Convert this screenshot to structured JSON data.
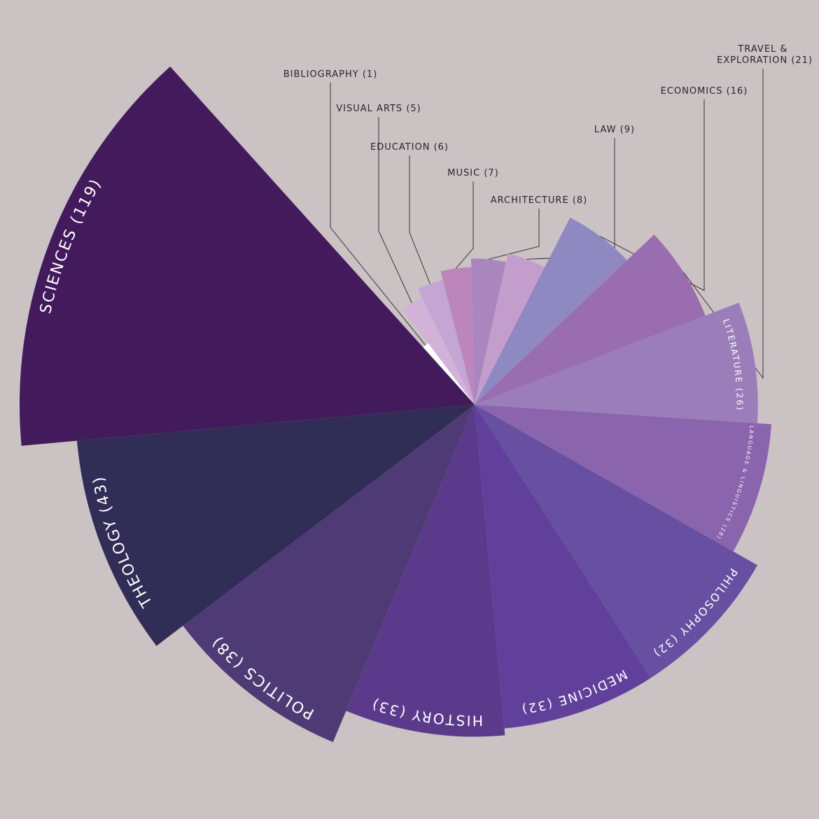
{
  "chart_data": {
    "type": "rose",
    "categories": [
      "BIBLIOGRAPHY",
      "VISUAL ARTS",
      "EDUCATION",
      "MUSIC",
      "ARCHITECTURE",
      "LAW",
      "ECONOMICS",
      "TRAVEL & EXPLORATION",
      "LITERATURE",
      "LANGUAGE & LINGUISTICS",
      "PHILOSOPHY",
      "MEDICINE",
      "HISTORY",
      "POLITICS",
      "THEOLOGY",
      "SCIENCES"
    ],
    "values": [
      1,
      5,
      6,
      7,
      8,
      9,
      16,
      21,
      26,
      28,
      32,
      32,
      33,
      38,
      43,
      119
    ],
    "value_labels": [
      "(1)",
      "(5)",
      "(6)",
      "(7)",
      "(8)",
      "(9)",
      "(16)",
      "(21)",
      "(26)",
      "(28)",
      "(32)",
      "(32)",
      "(33)",
      "(38)",
      "(43)",
      "(119)"
    ],
    "colors": [
      "#ffffff",
      "#d3b2d9",
      "#c3a6d4",
      "#bc85bc",
      "#a987be",
      "#c39ecd",
      "#8e89c0",
      "#9a6db1",
      "#9a7db9",
      "#8a64ad",
      "#6750a1",
      "#61409b",
      "#5c3a8b",
      "#4e3b76",
      "#302d56",
      "#431b5d"
    ]
  }
}
